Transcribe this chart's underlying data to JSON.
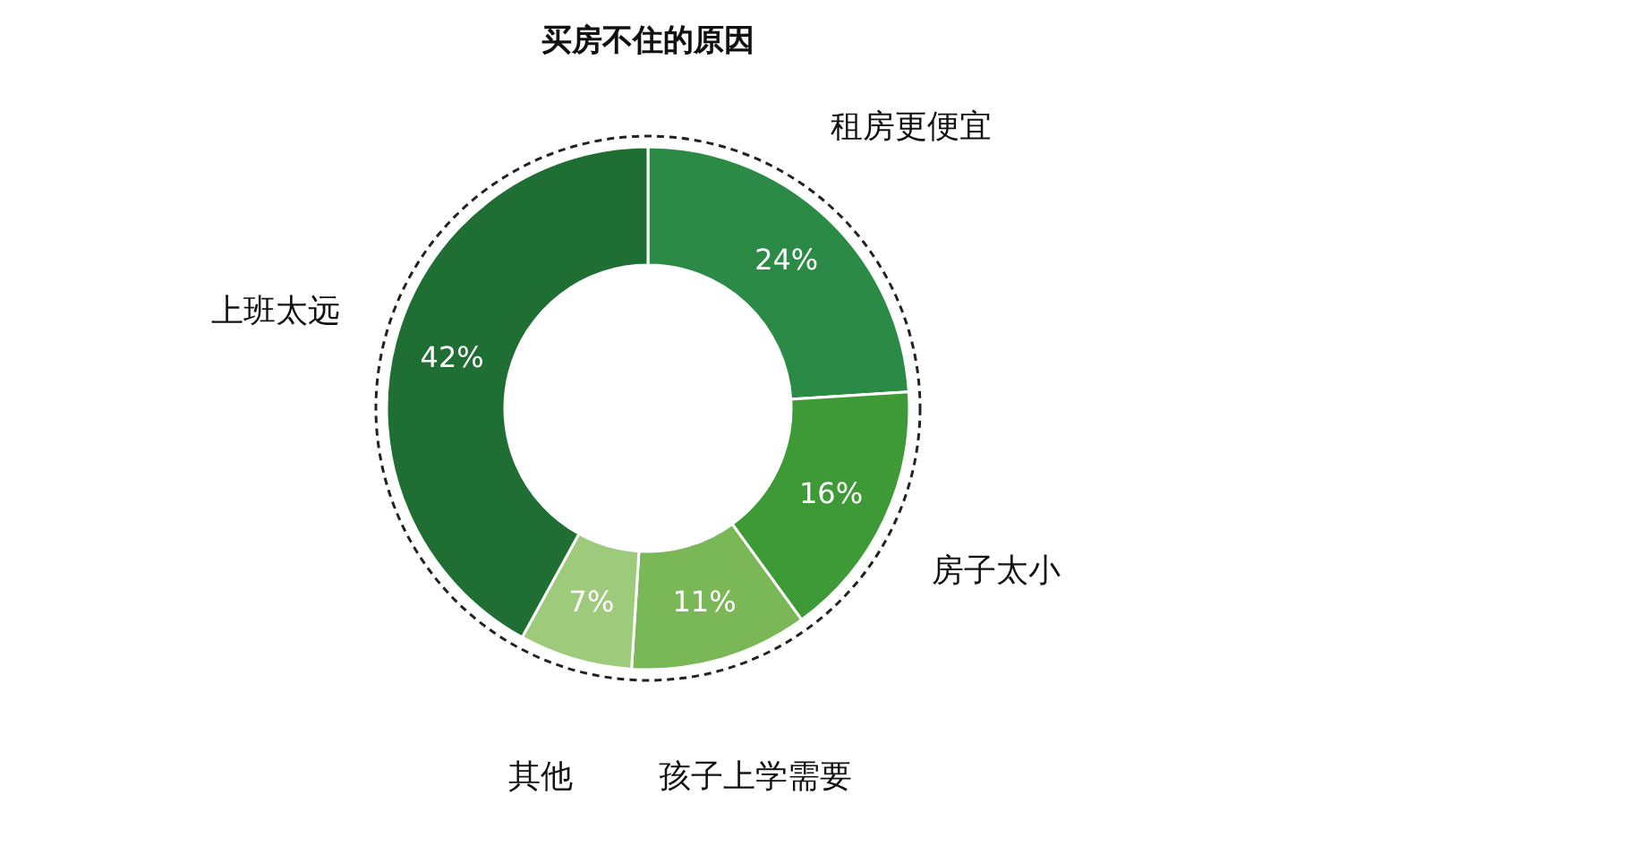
{
  "chart_data": {
    "type": "donut",
    "title": "买房不住的原因",
    "categories": [
      "租房更便宜",
      "房子太小",
      "孩子上学需要",
      "其他",
      "上班太远"
    ],
    "values": [
      24,
      16,
      11,
      7,
      42
    ],
    "value_labels": [
      "24%",
      "16%",
      "11%",
      "7%",
      "42%"
    ],
    "colors": [
      "#2b8a45",
      "#3e9a36",
      "#79b757",
      "#9dcb7b",
      "#1f6f34"
    ]
  }
}
